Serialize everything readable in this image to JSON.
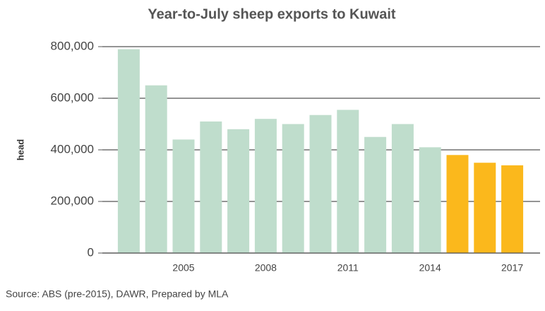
{
  "chart_data": {
    "type": "bar",
    "title": "Year-to-July sheep exports to Kuwait",
    "y_label": "head",
    "source": "Source: ABS (pre-2015), DAWR, Prepared by MLA",
    "categories": [
      null,
      null,
      "2005",
      null,
      null,
      "2008",
      null,
      null,
      "2011",
      null,
      null,
      "2014",
      null,
      null,
      "2017"
    ],
    "values": [
      790000,
      650000,
      440000,
      510000,
      480000,
      520000,
      500000,
      535000,
      555000,
      450000,
      500000,
      410000,
      380000,
      350000,
      340000
    ],
    "colors": [
      "#bfddcc",
      "#bfddcc",
      "#bfddcc",
      "#bfddcc",
      "#bfddcc",
      "#bfddcc",
      "#bfddcc",
      "#bfddcc",
      "#bfddcc",
      "#bfddcc",
      "#bfddcc",
      "#bfddcc",
      "#fbb81c",
      "#fbb81c",
      "#fbb81c"
    ],
    "ylim": [
      0,
      800000
    ],
    "yticks": [
      0,
      {
        "value": 200000,
        "label": "200,000"
      },
      {
        "value": 400000,
        "label": "400,000"
      },
      {
        "value": 600000,
        "label": "600,000"
      },
      {
        "value": 800000,
        "label": "800,000"
      }
    ],
    "grid": true
  }
}
